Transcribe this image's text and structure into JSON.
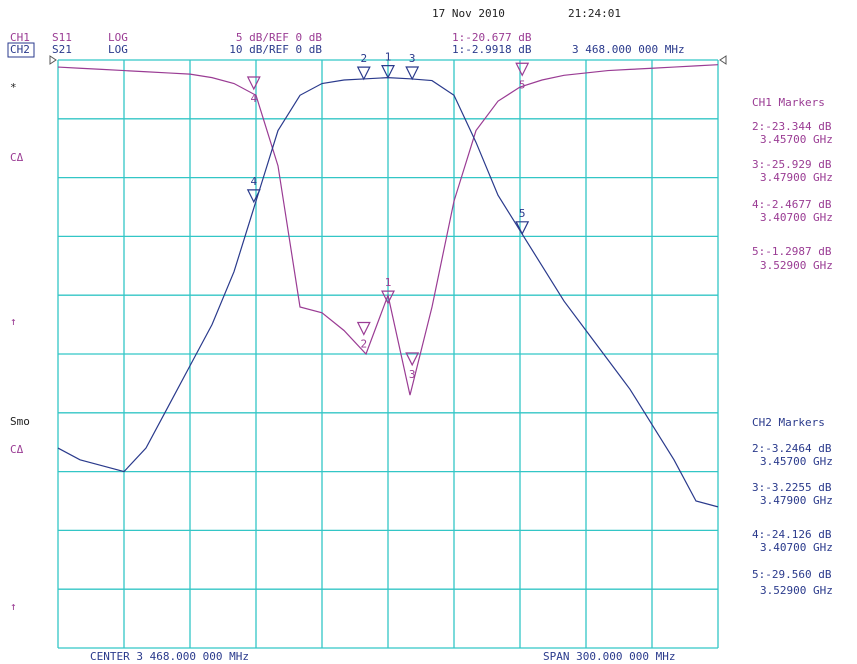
{
  "header": {
    "date": "17 Nov 2010",
    "time": "21:24:01"
  },
  "softkeys": [
    "*",
    "CΔ",
    "↑",
    "Smo",
    "CΔ",
    "↑"
  ],
  "chart_data": {
    "type": "line",
    "x": [
      3318,
      3328,
      3338,
      3348,
      3358,
      3368,
      3378,
      3388,
      3398,
      3408,
      3418,
      3428,
      3438,
      3448,
      3458,
      3468,
      3478,
      3488,
      3498,
      3508,
      3518,
      3528,
      3538,
      3548,
      3558,
      3568,
      3578,
      3588,
      3598,
      3608,
      3618
    ],
    "xlim": [
      3318,
      3618
    ],
    "xticks": [
      3318,
      3348,
      3378,
      3408,
      3438,
      3468,
      3498,
      3528,
      3558,
      3588,
      3618
    ],
    "ylim": [
      -50,
      0
    ],
    "yticks": [
      -50,
      -45,
      -40,
      -35,
      -30,
      -25,
      -20,
      -15,
      -10,
      -5,
      0
    ],
    "y2lim": [
      -100,
      0
    ],
    "y2ticks": [
      -100,
      -90,
      -80,
      -70,
      -60,
      -50,
      -40,
      -30,
      -20,
      -10,
      0
    ],
    "grid": true,
    "center_label": "CENTER 3 468.000 000 MHz",
    "span_label": "SPAN 300.000 000 MHz",
    "series": [
      {
        "channel": "CH1",
        "name": "S11",
        "format": "LOG",
        "scale": "5 dB/REF 0 dB",
        "color": "#9a3c94",
        "values": [
          -0.6,
          -0.7,
          -0.8,
          -0.9,
          -1,
          -1.1,
          -1.2,
          -1.5,
          -2,
          -3,
          -9,
          -21,
          -21.5,
          -23,
          -25,
          -20,
          -28.5,
          -21,
          -12,
          -6,
          -3.5,
          -2.3,
          -1.7,
          -1.3,
          -1.1,
          -0.9,
          -0.8,
          -0.7,
          -0.6,
          -0.5,
          -0.4
        ],
        "panel_title": "CH1 Markers",
        "markers": {
          "ids": [
            "1",
            "2",
            "3",
            "4",
            "5"
          ],
          "x": [
            3468,
            3457,
            3479,
            3407,
            3529
          ],
          "values": [
            -20.677,
            -23.344,
            -25.929,
            -2.4677,
            -1.2987
          ],
          "value_labels": [
            "1:-20.677 dB",
            "2:-23.344 dB",
            "3:-25.929 dB",
            "4:-2.4677 dB",
            "5:-1.2987 dB"
          ],
          "x_labels": [
            null,
            "3.45700 GHz",
            "3.47900 GHz",
            "3.40700 GHz",
            "3.52900 GHz"
          ]
        }
      },
      {
        "channel": "CH2",
        "name": "S21",
        "format": "LOG",
        "scale": "10 dB/REF 0 dB",
        "color": "#2a3a8c",
        "axis": "y2",
        "values": [
          -66,
          -68,
          -69,
          -70,
          -66,
          -59,
          -52,
          -45,
          -36,
          -24,
          -12,
          -6,
          -4,
          -3.4,
          -3.2,
          -3,
          -3.2,
          -3.5,
          -6,
          -14,
          -23,
          -29,
          -35,
          -41,
          -46,
          -51,
          -56,
          -62,
          -68,
          -75,
          -76
        ],
        "panel_title": "CH2 Markers",
        "markers": {
          "ids": [
            "1",
            "2",
            "3",
            "4",
            "5"
          ],
          "x": [
            3468,
            3457,
            3479,
            3407,
            3529
          ],
          "values": [
            -2.9918,
            -3.2464,
            -3.2255,
            -24.126,
            -29.56
          ],
          "value_labels": [
            "1:-2.9918 dB",
            "2:-3.2464 dB",
            "3:-3.2255 dB",
            "4:-24.126 dB",
            "5:-29.560 dB"
          ],
          "x_labels": [
            "3 468.000 000 MHz",
            "3.45700 GHz",
            "3.47900 GHz",
            "3.40700 GHz",
            "3.52900 GHz"
          ]
        }
      }
    ]
  }
}
